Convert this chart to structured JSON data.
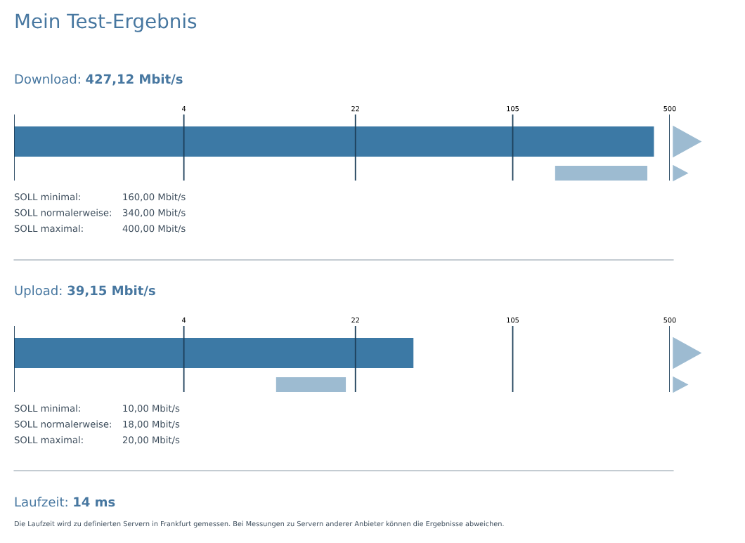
{
  "chart_data": [
    {
      "type": "bar",
      "orientation": "horizontal",
      "title": "Mein Test-Ergebnis",
      "subtitle": "Download: 427,12 Mbit/s",
      "categories": [
        null,
        null
      ],
      "values": [
        427.12,
        240
      ],
      "base": [
        null,
        160
      ],
      "colors": [
        "#3c79a5",
        "#9dbbd1"
      ],
      "log": "x",
      "xlim": [
        0.74,
        500
      ],
      "xticks": [
        {
          "value": 0.74,
          "label": null
        },
        4,
        22,
        105,
        500
      ],
      "grid": "x",
      "legend": false,
      "annotations": [
        "SOLL minimal:",
        "160,00 Mbit/s",
        "SOLL normalerweise:",
        "340,00 Mbit/s",
        "SOLL maximal:",
        "400,00 Mbit/s"
      ]
    },
    {
      "type": "bar",
      "orientation": "horizontal",
      "title": "Upload: 39,15 Mbit/s",
      "categories": [
        null,
        null
      ],
      "values": [
        39.15,
        10
      ],
      "base": [
        null,
        10
      ],
      "colors": [
        "#3c79a5",
        "#9dbbd1"
      ],
      "log": "x",
      "xlim": [
        0.74,
        500
      ],
      "xticks": [
        {
          "value": 0.74,
          "label": null
        },
        4,
        22,
        105,
        500
      ],
      "grid": "x",
      "legend": false,
      "annotations": [
        "SOLL minimal:",
        "10,00 Mbit/s",
        "SOLL normalerweise:",
        "18,00 Mbit/s",
        "SOLL maximal:",
        "20,00 Mbit/s"
      ]
    },
    {
      "type": "other",
      "title": "Laufzeit: 14 ms",
      "annotations": [
        "Die Laufzeit wird zu definierten Servern in Frankfurt gemessen. Bei Messungen zu Servern anderer Anbieter können die Ergebnisse abweichen."
      ]
    }
  ]
}
